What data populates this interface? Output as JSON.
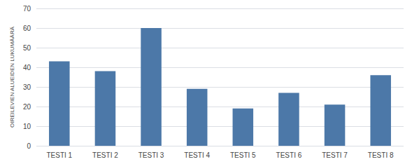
{
  "chart_data": {
    "type": "bar",
    "categories": [
      "TESTI 1",
      "TESTI 2",
      "TESTI 3",
      "TESTI 4",
      "TESTI 5",
      "TESTI 6",
      "TESTI 7",
      "TESTI 8"
    ],
    "values": [
      43,
      38,
      60,
      29,
      19,
      27,
      21,
      36
    ],
    "color": "#4c78a8",
    "ylabel": "OIREILEVIEN ALUEIDEN LUKUMÄÄRÄ",
    "ylim": [
      0,
      70
    ],
    "yticks": [
      0,
      10,
      20,
      30,
      40,
      50,
      60,
      70
    ],
    "grid": true
  }
}
